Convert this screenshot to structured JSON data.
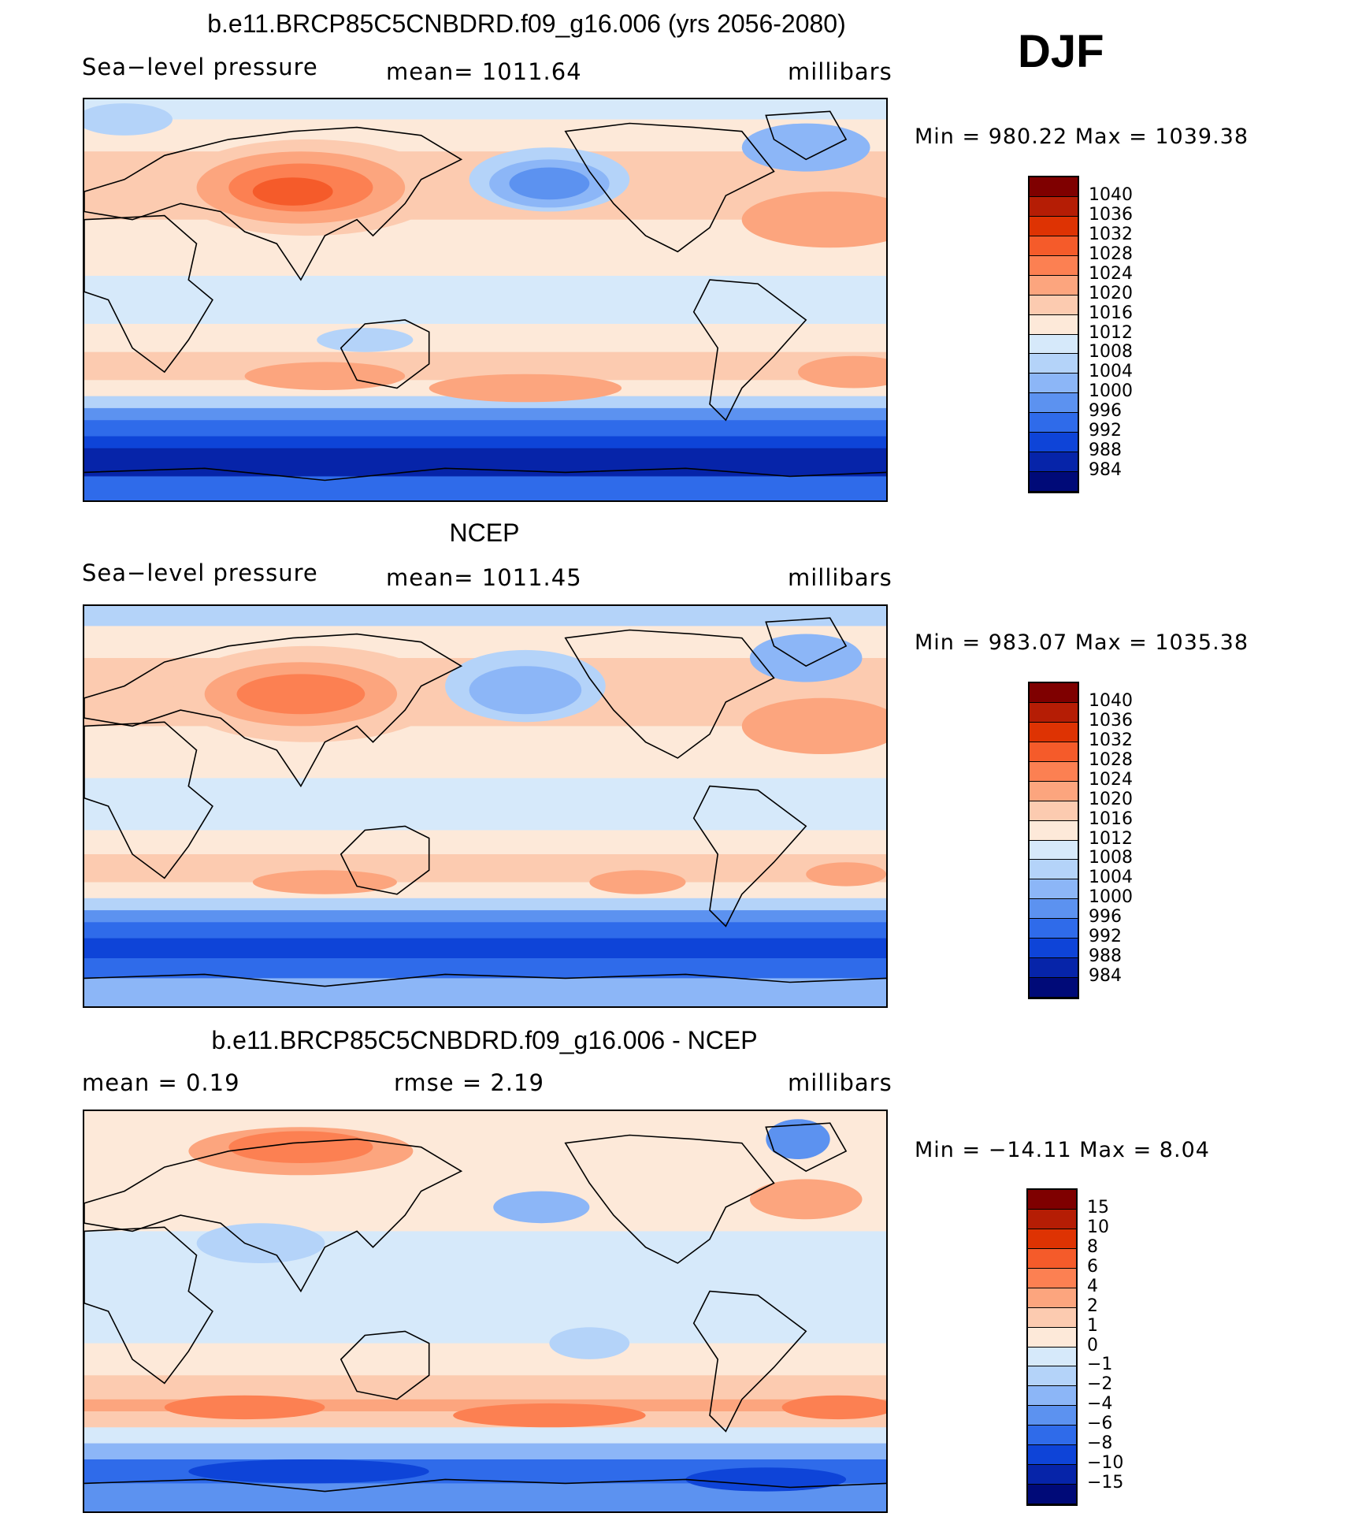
{
  "season": "DJF",
  "panels": [
    {
      "title": "b.e11.BRCP85C5CNBDRD.f09_g16.006 (yrs 2056-2080)",
      "left_text": "Sea−level pressure",
      "center_text": "mean=  1011.64",
      "right_text": "millibars",
      "minmax": "Min  =  980.22  Max  =  1039.38",
      "colorbar_labels": [
        "1040",
        "1036",
        "1032",
        "1028",
        "1024",
        "1020",
        "1016",
        "1012",
        "1008",
        "1004",
        "1000",
        "996",
        "992",
        "988",
        "984"
      ]
    },
    {
      "title": "NCEP",
      "left_text": "Sea−level pressure",
      "center_text": "mean=  1011.45",
      "right_text": "millibars",
      "minmax": "Min  =  983.07  Max  =  1035.38",
      "colorbar_labels": [
        "1040",
        "1036",
        "1032",
        "1028",
        "1024",
        "1020",
        "1016",
        "1012",
        "1008",
        "1004",
        "1000",
        "996",
        "992",
        "988",
        "984"
      ]
    },
    {
      "title": "b.e11.BRCP85C5CNBDRD.f09_g16.006 - NCEP",
      "left_text": "mean  =     0.19",
      "center_text": "rmse  =     2.19",
      "right_text": "millibars",
      "minmax": "Min  =  −14.11  Max  =     8.04",
      "colorbar_labels": [
        "15",
        "10",
        "8",
        "6",
        "4",
        "2",
        "1",
        "0",
        "−1",
        "−2",
        "−4",
        "−6",
        "−8",
        "−10",
        "−15"
      ]
    }
  ],
  "colors": {
    "scale": [
      "#7f0000",
      "#b51d05",
      "#de3303",
      "#f55b2a",
      "#fc8052",
      "#fca57e",
      "#fccbb0",
      "#fde9d9",
      "#d6e9fa",
      "#b4d3f9",
      "#8cb6f7",
      "#5c92f0",
      "#2f6bea",
      "#0e44d8",
      "#0624a9",
      "#000a78"
    ],
    "land_outline": "#000000"
  }
}
